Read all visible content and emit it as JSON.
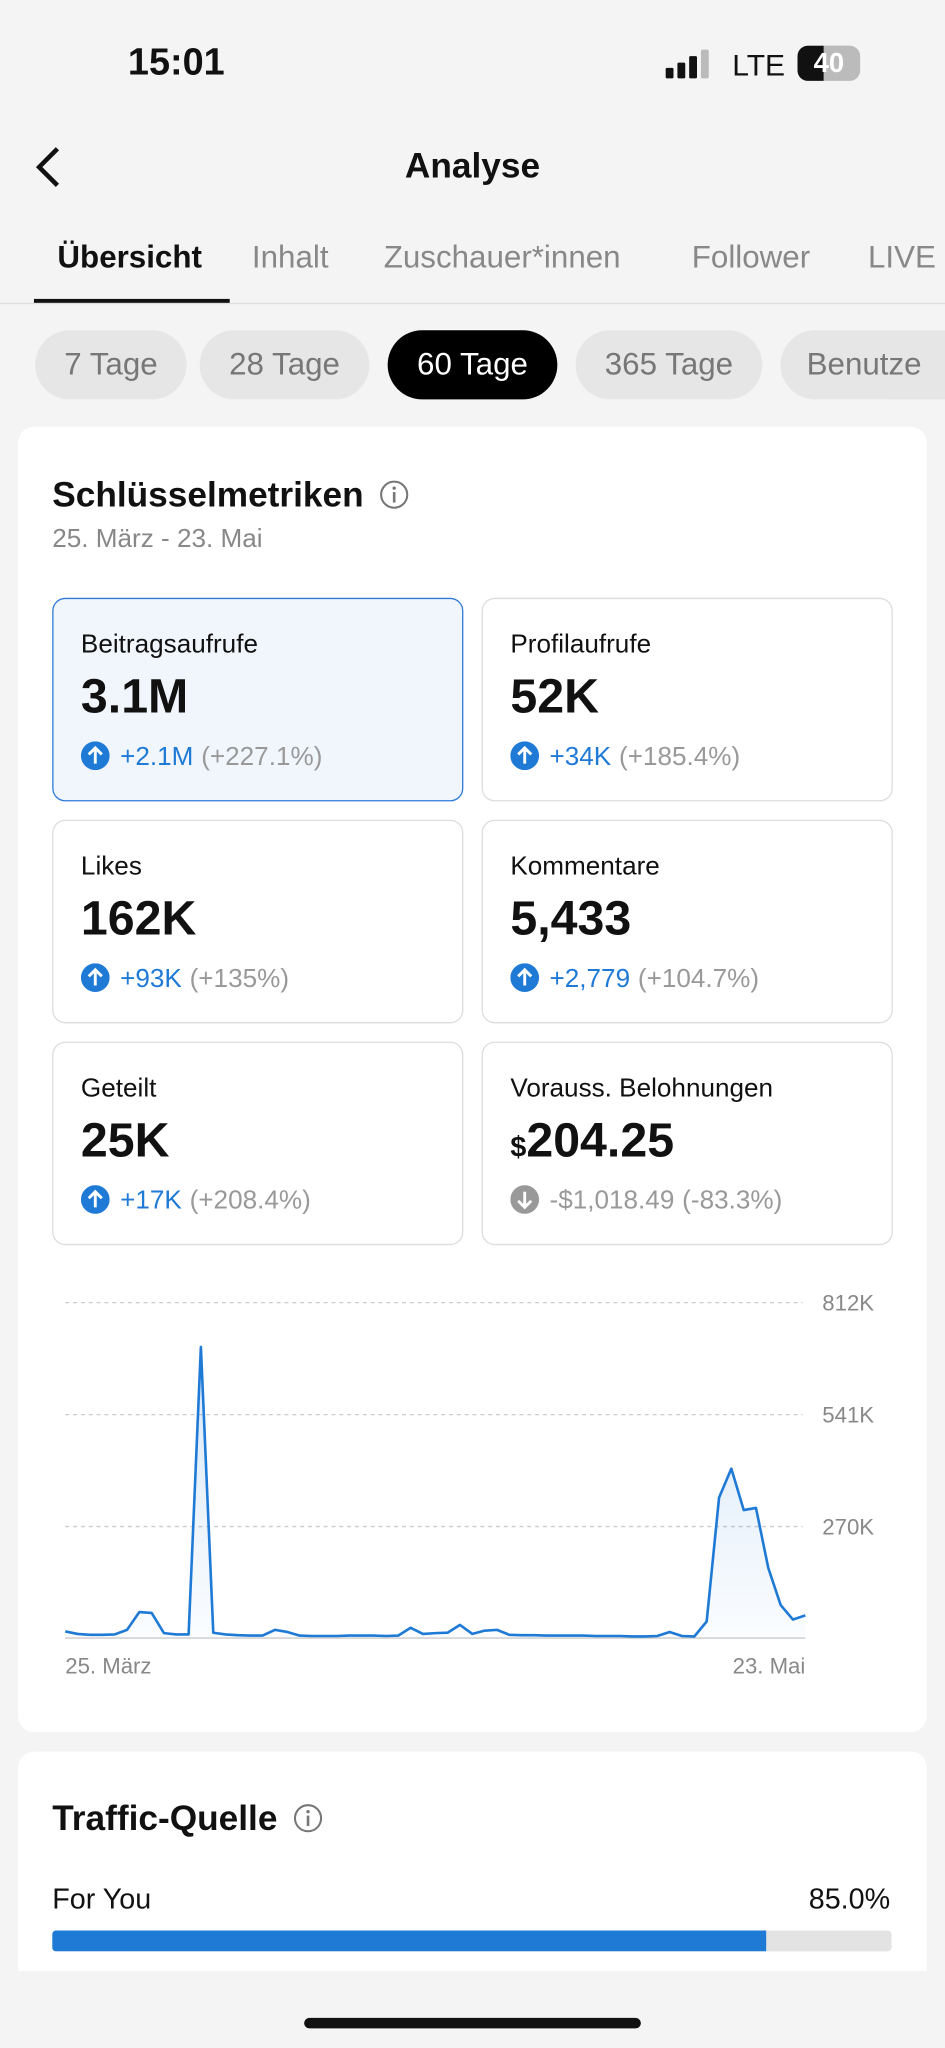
{
  "status": {
    "time": "15:01",
    "network": "LTE",
    "battery": "40"
  },
  "header": {
    "title": "Analyse"
  },
  "tabs": [
    "Übersicht",
    "Inhalt",
    "Zuschauer*innen",
    "Follower",
    "LIVE"
  ],
  "ranges": [
    "7 Tage",
    "28 Tage",
    "60 Tage",
    "365 Tage",
    "Benutze"
  ],
  "metrics_card": {
    "title": "Schlüsselmetriken",
    "date_range": "25. März - 23. Mai",
    "metrics": [
      {
        "label": "Beitragsaufrufe",
        "value": "3.1M",
        "change": "+2.1M",
        "pct": "(+227.1%)"
      },
      {
        "label": "Profilaufrufe",
        "value": "52K",
        "change": "+34K",
        "pct": "(+185.4%)"
      },
      {
        "label": "Likes",
        "value": "162K",
        "change": "+93K",
        "pct": "(+135%)"
      },
      {
        "label": "Kommentare",
        "value": "5,433",
        "change": "+2,779",
        "pct": "(+104.7%)"
      },
      {
        "label": "Geteilt",
        "value": "25K",
        "change": "+17K",
        "pct": "(+208.4%)"
      },
      {
        "label": "Vorauss. Belohnungen",
        "prefix": "$",
        "value": "204.25",
        "change": "-$1,018.49",
        "pct": "(-83.3%)"
      }
    ]
  },
  "chart_data": {
    "type": "line",
    "categories": [
      "25. März",
      null,
      null,
      null,
      null,
      null,
      null,
      null,
      null,
      null,
      null,
      null,
      null,
      null,
      null,
      null,
      null,
      null,
      null,
      null,
      null,
      null,
      null,
      null,
      null,
      null,
      null,
      null,
      null,
      null,
      null,
      null,
      null,
      null,
      null,
      null,
      null,
      null,
      null,
      null,
      null,
      null,
      null,
      null,
      null,
      null,
      null,
      null,
      null,
      null,
      null,
      null,
      null,
      null,
      null,
      null,
      null,
      null,
      null,
      null,
      "23. Mai"
    ],
    "series": [
      {
        "name": "Beitragsaufrufe",
        "color": "#1f7ad6",
        "values": [
          16000,
          10000,
          8000,
          8000,
          9000,
          20000,
          63000,
          61000,
          12000,
          9000,
          9000,
          705000,
          13000,
          9000,
          7000,
          6000,
          6000,
          20000,
          15000,
          6000,
          5000,
          5000,
          5000,
          6000,
          6000,
          6000,
          5000,
          6000,
          25000,
          10000,
          12000,
          13000,
          32000,
          10000,
          18000,
          20000,
          8000,
          7000,
          7000,
          6000,
          6000,
          6000,
          6000,
          5000,
          5000,
          5000,
          4000,
          4000,
          5000,
          15000,
          5000,
          4000,
          40000,
          340000,
          410000,
          310000,
          315000,
          170000,
          80000,
          45000,
          55000
        ]
      }
    ],
    "ylim": [
      0,
      812000
    ],
    "yticks": [
      {
        "value": 270000,
        "label": "270K"
      },
      {
        "value": 541000,
        "label": "541K"
      },
      {
        "value": 812000,
        "label": "812K"
      }
    ],
    "grid": true
  },
  "traffic": {
    "title": "Traffic-Quelle",
    "sources": [
      {
        "name": "For You",
        "value": 85.0,
        "label": "85.0%"
      }
    ]
  }
}
